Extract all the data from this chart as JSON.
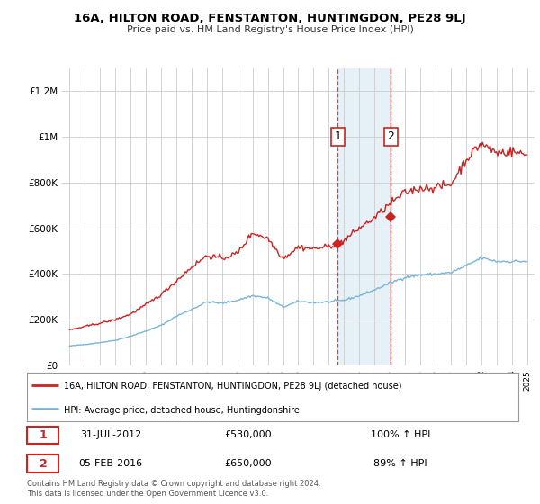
{
  "title": "16A, HILTON ROAD, FENSTANTON, HUNTINGDON, PE28 9LJ",
  "subtitle": "Price paid vs. HM Land Registry's House Price Index (HPI)",
  "footnote": "Contains HM Land Registry data © Crown copyright and database right 2024.\nThis data is licensed under the Open Government Licence v3.0.",
  "legend_line1": "16A, HILTON ROAD, FENSTANTON, HUNTINGDON, PE28 9LJ (detached house)",
  "legend_line2": "HPI: Average price, detached house, Huntingdonshire",
  "transaction1_date": "31-JUL-2012",
  "transaction1_price": "£530,000",
  "transaction1_hpi": "100% ↑ HPI",
  "transaction2_date": "05-FEB-2016",
  "transaction2_price": "£650,000",
  "transaction2_hpi": "89% ↑ HPI",
  "hpi_color": "#7ab5d8",
  "price_color": "#cc2222",
  "highlight_color": "#daeaf5",
  "ylim": [
    0,
    1300000
  ],
  "yticks": [
    0,
    200000,
    400000,
    600000,
    800000,
    1000000,
    1200000
  ],
  "ytick_labels": [
    "£0",
    "£200K",
    "£400K",
    "£600K",
    "£800K",
    "£1M",
    "£1.2M"
  ],
  "background_color": "#ffffff",
  "grid_color": "#cccccc",
  "transaction1_x": 2012.58,
  "transaction1_y": 530000,
  "transaction2_x": 2016.08,
  "transaction2_y": 650000,
  "highlight_x1": 2012.58,
  "highlight_x2": 2016.08,
  "xmin": 1995.0,
  "xmax": 2025.5
}
